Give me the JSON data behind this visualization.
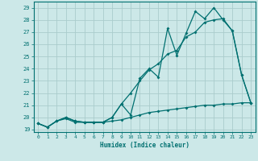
{
  "xlabel": "Humidex (Indice chaleur)",
  "bg_color": "#cce8e8",
  "grid_color": "#aacccc",
  "line_color": "#007070",
  "xlim": [
    -0.5,
    23.5
  ],
  "ylim": [
    18.8,
    29.5
  ],
  "xticks": [
    0,
    1,
    2,
    3,
    4,
    5,
    6,
    7,
    8,
    9,
    10,
    11,
    12,
    13,
    14,
    15,
    16,
    17,
    18,
    19,
    20,
    21,
    22,
    23
  ],
  "yticks": [
    19,
    20,
    21,
    22,
    23,
    24,
    25,
    26,
    27,
    28,
    29
  ],
  "series1_x": [
    0,
    1,
    2,
    3,
    4,
    5,
    6,
    7,
    8,
    9,
    10,
    11,
    12,
    13,
    14,
    15,
    16,
    17,
    18,
    19,
    20,
    21,
    22,
    23
  ],
  "series1_y": [
    19.5,
    19.2,
    19.7,
    20.0,
    19.7,
    19.6,
    19.6,
    19.6,
    20.0,
    21.1,
    20.2,
    23.2,
    24.0,
    23.3,
    27.3,
    25.1,
    26.9,
    28.7,
    28.1,
    29.0,
    28.0,
    27.1,
    23.5,
    21.2
  ],
  "series2_x": [
    0,
    1,
    2,
    3,
    4,
    5,
    6,
    7,
    8,
    9,
    10,
    11,
    12,
    13,
    14,
    15,
    16,
    17,
    18,
    19,
    20,
    21,
    22,
    23
  ],
  "series2_y": [
    19.5,
    19.2,
    19.7,
    20.0,
    19.7,
    19.6,
    19.6,
    19.6,
    20.0,
    21.1,
    22.0,
    23.0,
    23.9,
    24.4,
    25.2,
    25.5,
    26.6,
    27.0,
    27.8,
    28.0,
    28.1,
    27.1,
    23.5,
    21.2
  ],
  "series3_x": [
    0,
    1,
    2,
    3,
    4,
    5,
    6,
    7,
    8,
    9,
    10,
    11,
    12,
    13,
    14,
    15,
    16,
    17,
    18,
    19,
    20,
    21,
    22,
    23
  ],
  "series3_y": [
    19.5,
    19.2,
    19.7,
    19.9,
    19.6,
    19.6,
    19.6,
    19.6,
    19.7,
    19.8,
    20.0,
    20.2,
    20.4,
    20.5,
    20.6,
    20.7,
    20.8,
    20.9,
    21.0,
    21.0,
    21.1,
    21.1,
    21.2,
    21.2
  ]
}
